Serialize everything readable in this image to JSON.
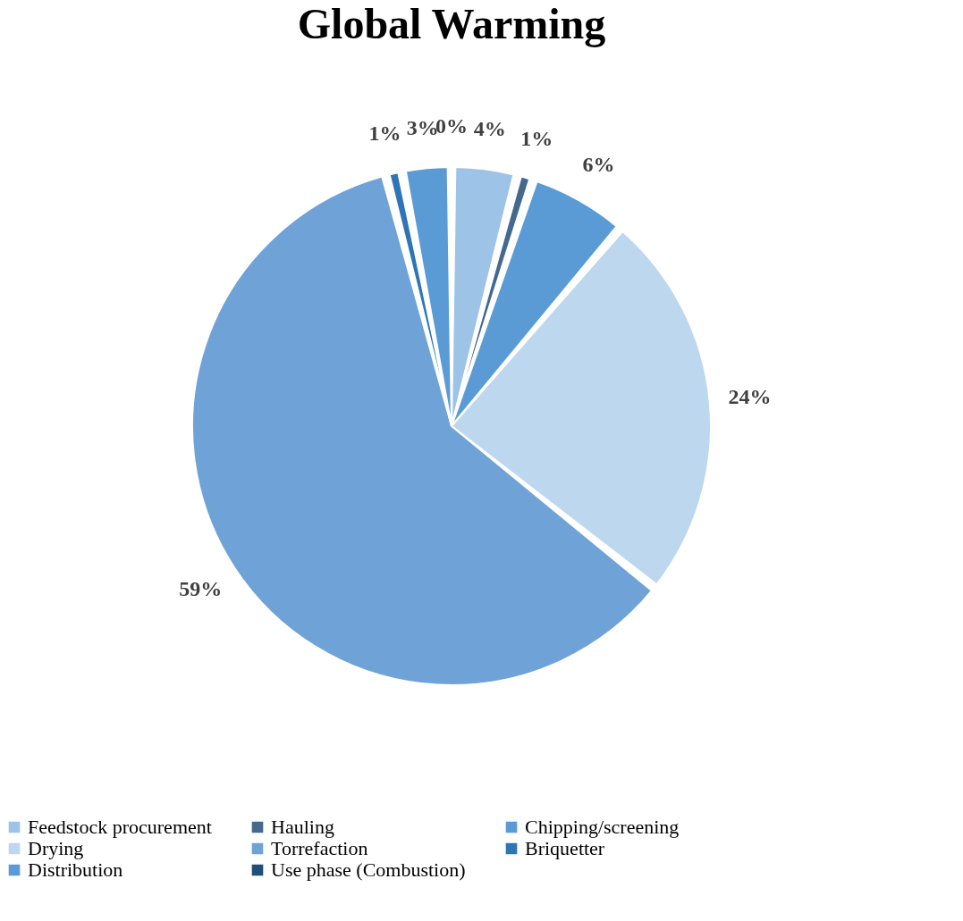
{
  "chart_data": {
    "type": "pie",
    "title": "Global Warming",
    "categories": [
      "Feedstock procurement",
      "Hauling",
      "Chipping/screening",
      "Drying",
      "Torrefaction",
      "Briquetter",
      "Distribution",
      "Use phase (Combustion)"
    ],
    "values": [
      4,
      1,
      6,
      24,
      59,
      1,
      3,
      0
    ],
    "value_labels": [
      "4%",
      "1%",
      "6%",
      "24%",
      "59%",
      "1%",
      "3%",
      "0%"
    ],
    "colors": [
      "#9dc3e6",
      "#44698f",
      "#5b9bd5",
      "#bdd7ee",
      "#6fa3d8",
      "#2e75b6",
      "#5b9bd5",
      "#1f4e79"
    ],
    "legend": "bottom"
  }
}
